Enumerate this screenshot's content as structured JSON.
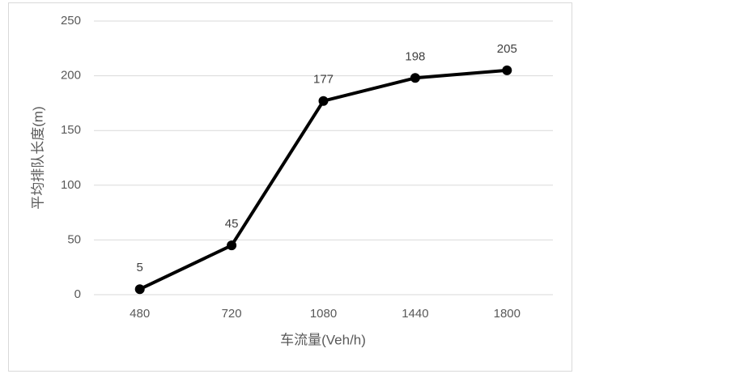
{
  "chart_data": {
    "type": "line",
    "x_label": "车流量(Veh/h)",
    "y_label": "平均排队长度(m)",
    "categories": [
      "480",
      "720",
      "1080",
      "1440",
      "1800"
    ],
    "values": [
      5,
      45,
      177,
      198,
      205
    ],
    "color": "#000000",
    "ylim": [
      0,
      250
    ],
    "yticks": [
      0,
      50,
      100,
      150,
      200,
      250
    ],
    "grid": true
  }
}
